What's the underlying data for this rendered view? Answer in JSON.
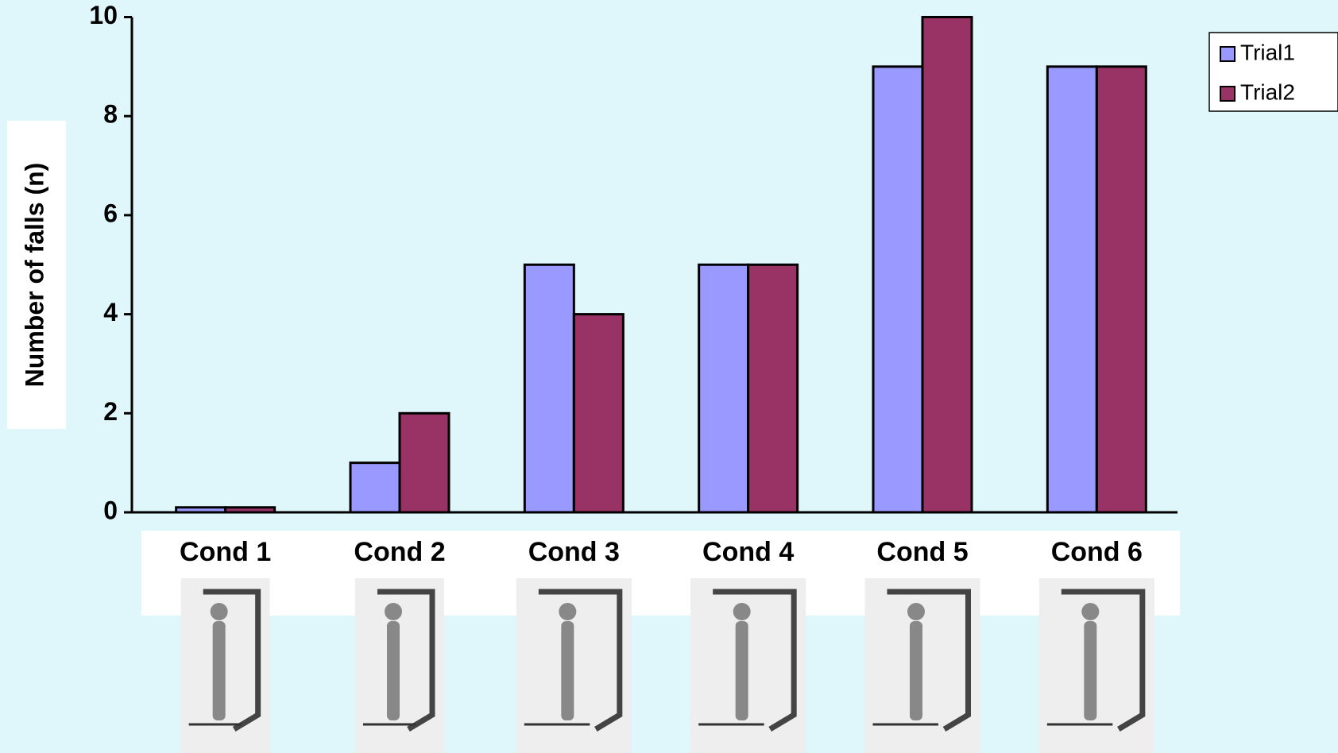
{
  "chart_data": {
    "type": "bar",
    "y_label": "Number of  falls (n)",
    "categories": [
      "Cond 1",
      "Cond 2",
      "Cond 3",
      "Cond 4",
      "Cond 5",
      "Cond 6"
    ],
    "series": [
      {
        "name": "Trial1",
        "color": "#9999ff",
        "values": [
          0.1,
          1,
          5,
          5,
          9,
          9
        ]
      },
      {
        "name": "Trial2",
        "color": "#993366",
        "values": [
          0.1,
          2,
          4,
          5,
          10,
          9
        ]
      }
    ],
    "ylim": [
      0,
      10
    ],
    "yticks": [
      0,
      2,
      4,
      6,
      8,
      10
    ],
    "grid": false,
    "legend": "top-right"
  }
}
